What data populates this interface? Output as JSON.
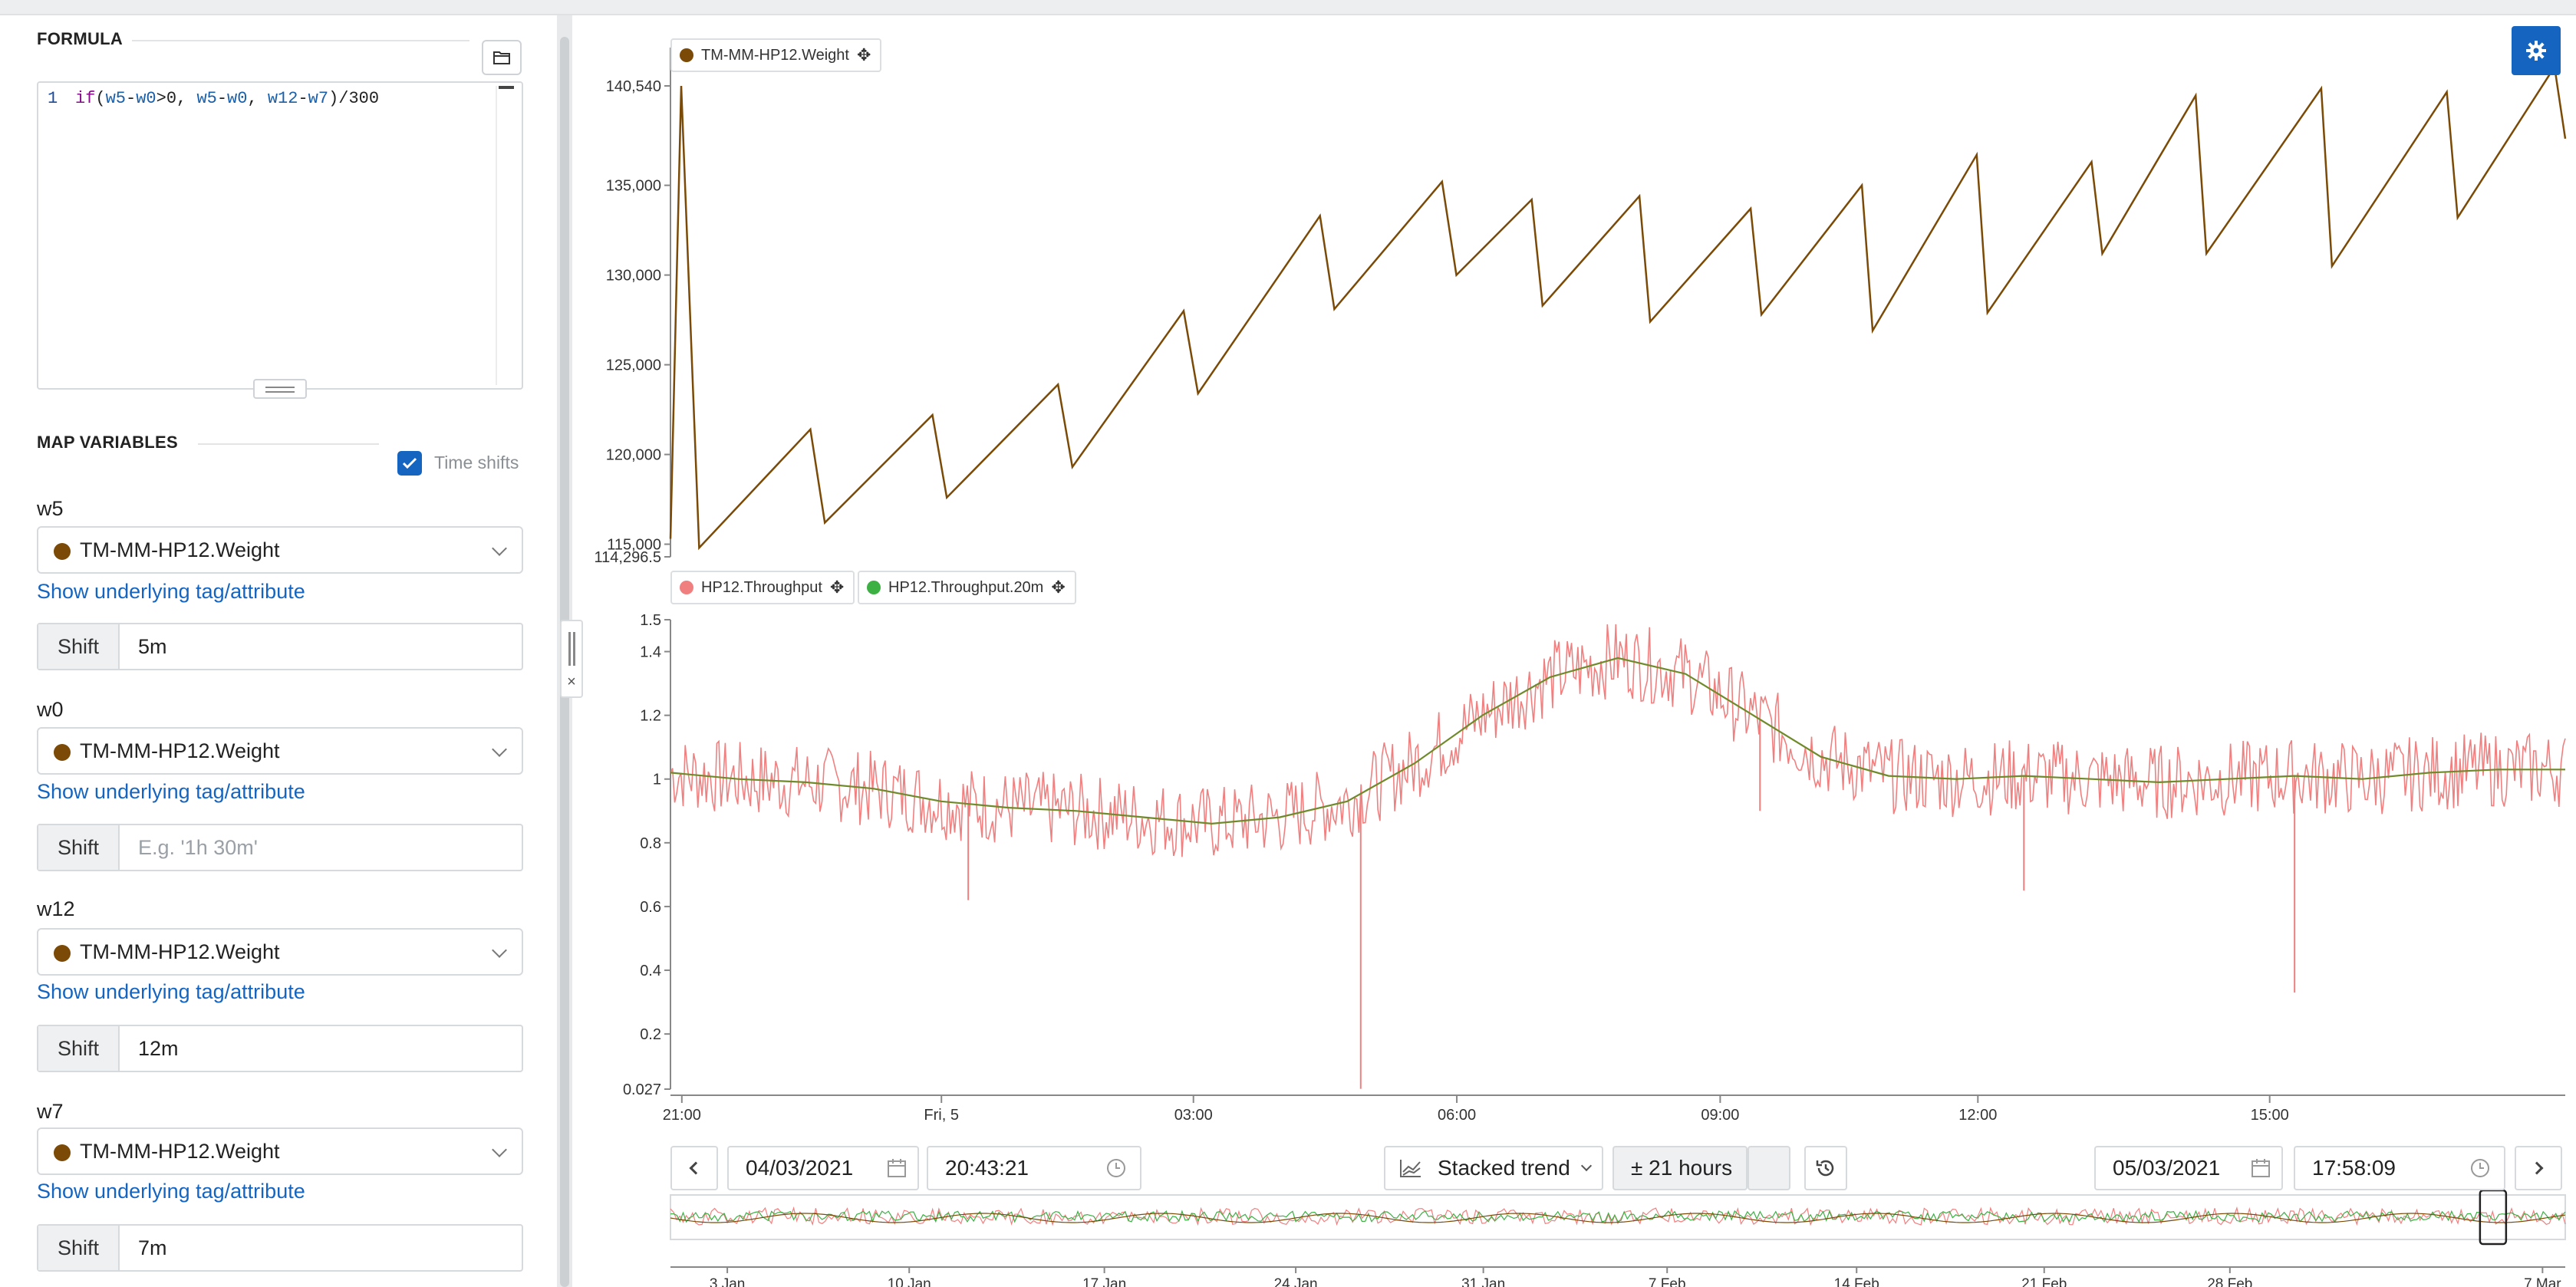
{
  "formula": {
    "section_title": "FORMULA",
    "line_number": "1",
    "code_tokens": [
      {
        "t": "if",
        "c": "kw"
      },
      {
        "t": "(",
        "c": ""
      },
      {
        "t": "w5",
        "c": "var"
      },
      {
        "t": "-",
        "c": ""
      },
      {
        "t": "w0",
        "c": "var"
      },
      {
        "t": ">0, ",
        "c": ""
      },
      {
        "t": "w5",
        "c": "var"
      },
      {
        "t": "-",
        "c": ""
      },
      {
        "t": "w0",
        "c": "var"
      },
      {
        "t": ", ",
        "c": ""
      },
      {
        "t": "w12",
        "c": "var"
      },
      {
        "t": "-",
        "c": ""
      },
      {
        "t": "w7",
        "c": "var"
      },
      {
        "t": ")/300",
        "c": ""
      }
    ]
  },
  "map_variables": {
    "section_title": "MAP VARIABLES",
    "time_shifts_label": "Time shifts",
    "time_shifts_checked": true,
    "link_text": "Show underlying tag/attribute",
    "shift_label": "Shift",
    "variables": [
      {
        "name": "w5",
        "tag": "TM-MM-HP12.Weight",
        "shift": "5m",
        "placeholder": ""
      },
      {
        "name": "w0",
        "tag": "TM-MM-HP12.Weight",
        "shift": "",
        "placeholder": "E.g. '1h 30m'"
      },
      {
        "name": "w12",
        "tag": "TM-MM-HP12.Weight",
        "shift": "12m",
        "placeholder": ""
      },
      {
        "name": "w7",
        "tag": "TM-MM-HP12.Weight",
        "shift": "7m",
        "placeholder": ""
      }
    ]
  },
  "colors": {
    "accent": "#1565c0",
    "weight_series": "#7a4a06",
    "throughput_series": "#f08080",
    "throughput20_series": "#3cb043"
  },
  "splitter": {
    "close_glyph": "×"
  },
  "chart_data": [
    {
      "type": "line",
      "legend": [
        "TM-MM-HP12.Weight"
      ],
      "y_ticks": [
        "140,540",
        "135,000",
        "130,000",
        "125,000",
        "120,000",
        "115,000",
        "114,296.5"
      ],
      "ylim": [
        114296.5,
        140540
      ],
      "series": [
        {
          "name": "TM-MM-HP12.Weight",
          "x": [
            0,
            0.6,
            1.6,
            7.8,
            8.6,
            14.6,
            15.4,
            21.6,
            22.4,
            28.6,
            29.4,
            36.2,
            37.0,
            43.0,
            43.8,
            48.0,
            48.6,
            54.0,
            54.6,
            60.2,
            60.8,
            66.4,
            67.0,
            72.8,
            73.4,
            79.2,
            79.8,
            85.0,
            85.6,
            92.0,
            92.6,
            99.0,
            99.6,
            105.0,
            105.6
          ],
          "values": [
            115300,
            140540,
            114800,
            121400,
            116200,
            122200,
            117600,
            123900,
            119300,
            128000,
            123400,
            133300,
            128100,
            135200,
            130000,
            134200,
            128300,
            134400,
            127400,
            133700,
            127800,
            135000,
            126900,
            136700,
            127900,
            136300,
            131200,
            140000,
            131200,
            140400,
            130500,
            140200,
            133200,
            141600,
            137600
          ]
        }
      ]
    },
    {
      "type": "line",
      "legend": [
        "HP12.Throughput",
        "HP12.Throughput.20m"
      ],
      "y_ticks": [
        "1.5",
        "1.4",
        "1.2",
        "1",
        "0.8",
        "0.6",
        "0.4",
        "0.2",
        "0.027"
      ],
      "ylim": [
        0.027,
        1.5
      ],
      "x_ticks": [
        "21:00",
        "Fri, 5",
        "03:00",
        "06:00",
        "09:00",
        "12:00",
        "15:00"
      ],
      "series": [
        {
          "name": "HP12.Throughput.20m",
          "x": [
            0,
            5,
            10,
            15,
            20,
            25,
            30,
            35,
            40,
            45,
            50,
            55,
            60,
            65,
            70,
            75,
            80,
            85,
            90,
            95,
            100,
            105,
            110,
            115,
            120,
            125,
            130,
            135,
            140
          ],
          "values": [
            1.02,
            1.0,
            0.99,
            0.97,
            0.93,
            0.91,
            0.9,
            0.88,
            0.86,
            0.88,
            0.93,
            1.05,
            1.2,
            1.32,
            1.38,
            1.33,
            1.2,
            1.07,
            1.01,
            1.0,
            1.01,
            1.0,
            0.99,
            1.0,
            1.01,
            1.0,
            1.02,
            1.03,
            1.03
          ]
        },
        {
          "name": "HP12.Throughput",
          "spikes": [
            {
              "x": 22,
              "v": 0.62
            },
            {
              "x": 51,
              "v": 0.028
            },
            {
              "x": 80.5,
              "v": 0.9
            },
            {
              "x": 100,
              "v": 0.65
            },
            {
              "x": 120,
              "v": 0.33
            }
          ]
        }
      ]
    }
  ],
  "toolbar": {
    "start_date": "04/03/2021",
    "start_time": "20:43:21",
    "view_mode": "Stacked trend",
    "range": "± 21 hours",
    "end_date": "05/03/2021",
    "end_time": "17:58:09"
  },
  "overview": {
    "x_ticks": [
      "3 Jan",
      "10 Jan",
      "17 Jan",
      "24 Jan",
      "31 Jan",
      "7 Feb",
      "14 Feb",
      "21 Feb",
      "28 Feb",
      "7 Mar"
    ]
  }
}
